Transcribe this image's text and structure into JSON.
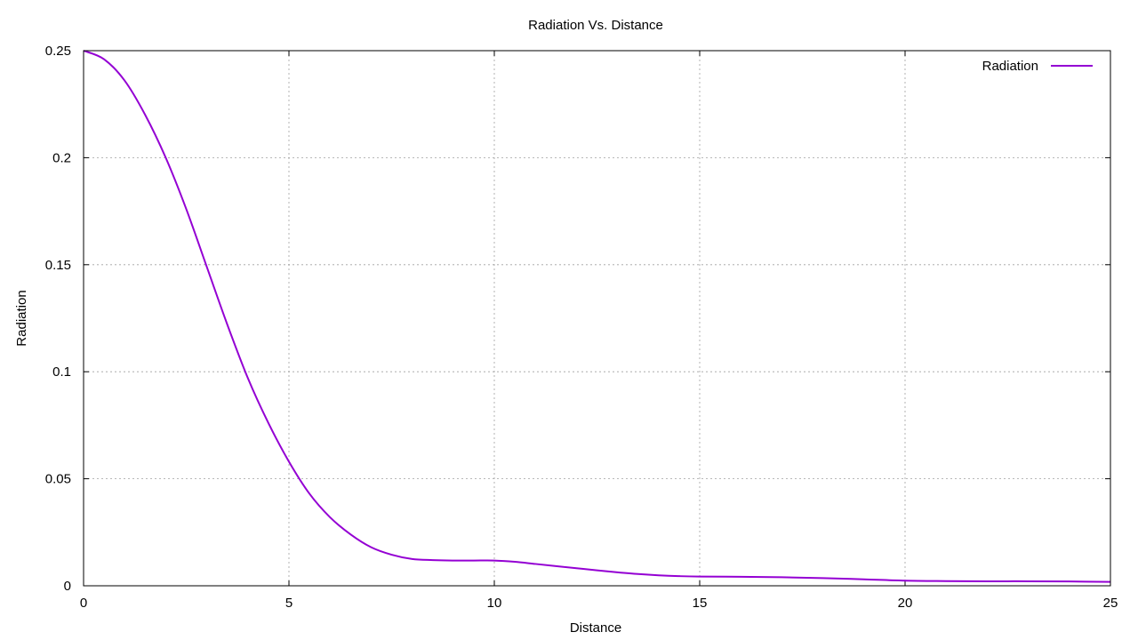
{
  "chart_data": {
    "type": "line",
    "title": "Radiation Vs. Distance",
    "xlabel": "Distance",
    "ylabel": "Radiation",
    "xlim": [
      0,
      25
    ],
    "ylim": [
      0,
      0.25
    ],
    "xticks": [
      0,
      5,
      10,
      15,
      20,
      25
    ],
    "xtick_labels": [
      "0",
      "5",
      "10",
      "15",
      "20",
      "25"
    ],
    "yticks": [
      0,
      0.05,
      0.1,
      0.15,
      0.2,
      0.25
    ],
    "ytick_labels": [
      "0",
      "0.05",
      "0.1",
      "0.15",
      "0.2",
      "0.25"
    ],
    "grid": true,
    "legend": "top-right",
    "series": [
      {
        "name": "Radiation",
        "color": "#9400d3",
        "x": [
          0,
          0.5,
          1,
          1.5,
          2,
          2.5,
          3,
          3.5,
          4,
          4.5,
          5,
          5.5,
          6,
          6.5,
          7,
          7.5,
          8,
          8.5,
          9,
          9.5,
          10,
          10.5,
          11,
          11.5,
          12,
          12.5,
          13,
          13.5,
          14,
          14.5,
          15,
          16,
          17,
          18,
          19,
          20,
          21,
          22,
          23,
          24,
          25
        ],
        "y": [
          0.25,
          0.246,
          0.236,
          0.22,
          0.2,
          0.176,
          0.149,
          0.122,
          0.097,
          0.076,
          0.058,
          0.043,
          0.032,
          0.024,
          0.018,
          0.0145,
          0.0125,
          0.012,
          0.0118,
          0.0118,
          0.0118,
          0.0112,
          0.0102,
          0.0092,
          0.0082,
          0.0072,
          0.0063,
          0.0055,
          0.0049,
          0.0045,
          0.0043,
          0.0042,
          0.004,
          0.0036,
          0.003,
          0.0024,
          0.0022,
          0.0021,
          0.0021,
          0.002,
          0.0018
        ]
      }
    ]
  }
}
